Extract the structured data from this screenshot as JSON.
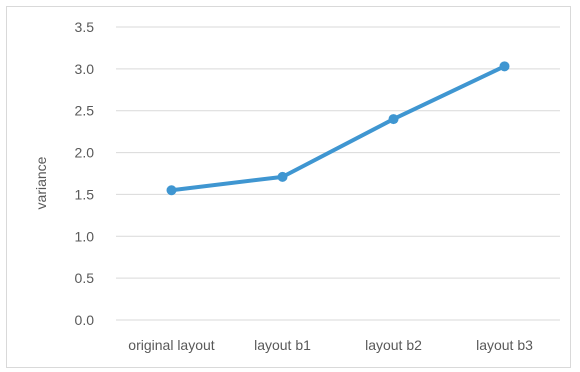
{
  "chart_data": {
    "type": "line",
    "title": "",
    "xlabel": "",
    "ylabel": "variance",
    "categories": [
      "original layout",
      "layout b1",
      "layout b2",
      "layout b3"
    ],
    "series": [
      {
        "values": [
          1.55,
          1.71,
          2.4,
          3.03
        ],
        "color": "#3f96d1"
      }
    ],
    "ylim": [
      0,
      3.5
    ],
    "yticks": [
      "0.0",
      "0.5",
      "1.0",
      "1.5",
      "2.0",
      "2.5",
      "3.0",
      "3.5"
    ],
    "grid": true,
    "legend": "none"
  }
}
